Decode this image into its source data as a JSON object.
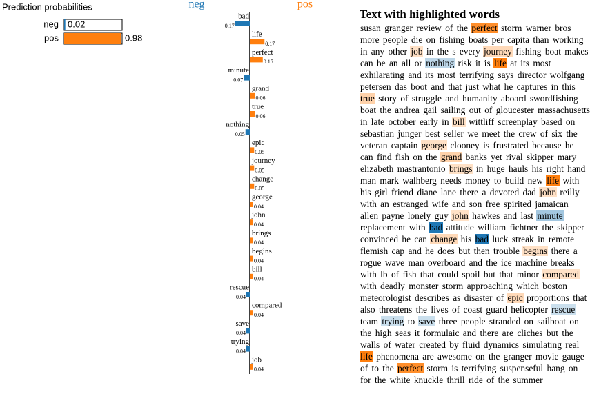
{
  "chart_data": [
    {
      "type": "probabilities",
      "title": "Prediction probabilities",
      "categories": [
        "neg",
        "pos"
      ],
      "values": [
        0.02,
        0.98
      ],
      "colors": [
        "#1f77b4",
        "#ff7f0e"
      ]
    },
    {
      "type": "contributions",
      "categories": [
        "bad",
        "life",
        "perfect",
        "minute",
        "grand",
        "true",
        "nothing",
        "epic",
        "journey",
        "change",
        "george",
        "john",
        "brings",
        "begins",
        "bill",
        "rescue",
        "compared",
        "save",
        "trying",
        "job"
      ],
      "series": [
        {
          "name": "neg",
          "color": "#1f77b4",
          "values": [
            0.17,
            null,
            null,
            0.07,
            null,
            null,
            0.05,
            null,
            null,
            null,
            null,
            null,
            null,
            null,
            null,
            0.04,
            null,
            0.04,
            0.04,
            null
          ]
        },
        {
          "name": "pos",
          "color": "#ff7f0e",
          "values": [
            null,
            0.17,
            0.15,
            null,
            0.06,
            0.06,
            null,
            0.05,
            0.05,
            0.05,
            0.04,
            0.04,
            0.04,
            0.04,
            0.04,
            null,
            0.04,
            null,
            null,
            0.04
          ]
        }
      ]
    }
  ],
  "text": {
    "title": "Text with highlighted words",
    "words": [
      "susan",
      "granger",
      "review",
      "of",
      "the",
      "perfect",
      "storm",
      "warner",
      "bros",
      "more",
      "people",
      "die",
      "on",
      "fishing",
      "boats",
      "per",
      "capita",
      "than",
      "working",
      "in",
      "any",
      "other",
      "job",
      "in",
      "the",
      "s",
      "every",
      "journey",
      "fishing",
      "boat",
      "makes",
      "can",
      "be",
      "an",
      "all",
      "or",
      "nothing",
      "risk",
      "it",
      "is",
      "life",
      "at",
      "its",
      "most",
      "exhilarating",
      "and",
      "its",
      "most",
      "terrifying",
      "says",
      "director",
      "wolfgang",
      "petersen",
      "das",
      "boot",
      "and",
      "that",
      "just",
      "what",
      "he",
      "captures",
      "in",
      "this",
      "true",
      "story",
      "of",
      "struggle",
      "and",
      "humanity",
      "aboard",
      "swordfishing",
      "boat",
      "the",
      "andrea",
      "gail",
      "sailing",
      "out",
      "of",
      "gloucester",
      "massachusetts",
      "in",
      "late",
      "october",
      "early",
      "in",
      "bill",
      "wittliff",
      "screenplay",
      "based",
      "on",
      "sebastian",
      "junger",
      "best",
      "seller",
      "we",
      "meet",
      "the",
      "crew",
      "of",
      "six",
      "the",
      "veteran",
      "captain",
      "george",
      "clooney",
      "is",
      "frustrated",
      "because",
      "he",
      "can",
      "find",
      "fish",
      "on",
      "the",
      "grand",
      "banks",
      "yet",
      "rival",
      "skipper",
      "mary",
      "elizabeth",
      "mastrantonio",
      "brings",
      "in",
      "huge",
      "hauls",
      "his",
      "right",
      "hand",
      "man",
      "mark",
      "walhberg",
      "needs",
      "money",
      "to",
      "build",
      "new",
      "life",
      "with",
      "his",
      "girl",
      "friend",
      "diane",
      "lane",
      "there",
      "a",
      "devoted",
      "dad",
      "john",
      "reilly",
      "with",
      "an",
      "estranged",
      "wife",
      "and",
      "son",
      "free",
      "spirited",
      "jamaican",
      "allen",
      "payne",
      "lonely",
      "guy",
      "john",
      "hawkes",
      "and",
      "last",
      "minute",
      "replacement",
      "with",
      "bad",
      "attitude",
      "william",
      "fichtner",
      "the",
      "skipper",
      "convinced",
      "he",
      "can",
      "change",
      "his",
      "bad",
      "luck",
      "streak",
      "in",
      "remote",
      "flemish",
      "cap",
      "and",
      "he",
      "does",
      "but",
      "then",
      "trouble",
      "begins",
      "there",
      "a",
      "rogue",
      "wave",
      "man",
      "overboard",
      "and",
      "the",
      "ice",
      "machine",
      "breaks",
      "with",
      "lb",
      "of",
      "fish",
      "that",
      "could",
      "spoil",
      "but",
      "that",
      "minor",
      "compared",
      "with",
      "deadly",
      "monster",
      "storm",
      "approaching",
      "which",
      "boston",
      "meteorologist",
      "describes",
      "as",
      "disaster",
      "of",
      "epic",
      "proportions",
      "that",
      "also",
      "threatens",
      "the",
      "lives",
      "of",
      "coast",
      "guard",
      "helicopter",
      "rescue",
      "team",
      "trying",
      "to",
      "save",
      "three",
      "people",
      "stranded",
      "on",
      "sailboat",
      "on",
      "the",
      "high",
      "seas",
      "it",
      "formulaic",
      "and",
      "there",
      "are",
      "cliches",
      "but",
      "the",
      "walls",
      "of",
      "water",
      "created",
      "by",
      "fluid",
      "dynamics",
      "simulating",
      "real",
      "life",
      "phenomena",
      "are",
      "awesome",
      "on",
      "the",
      "granger",
      "movie",
      "gauge",
      "of",
      "to",
      "the",
      "perfect",
      "storm",
      "is",
      "terrifying",
      "suspenseful",
      "hang",
      "on",
      "for",
      "the",
      "white",
      "knuckle",
      "thrill",
      "ride",
      "of",
      "the",
      "summer"
    ]
  }
}
